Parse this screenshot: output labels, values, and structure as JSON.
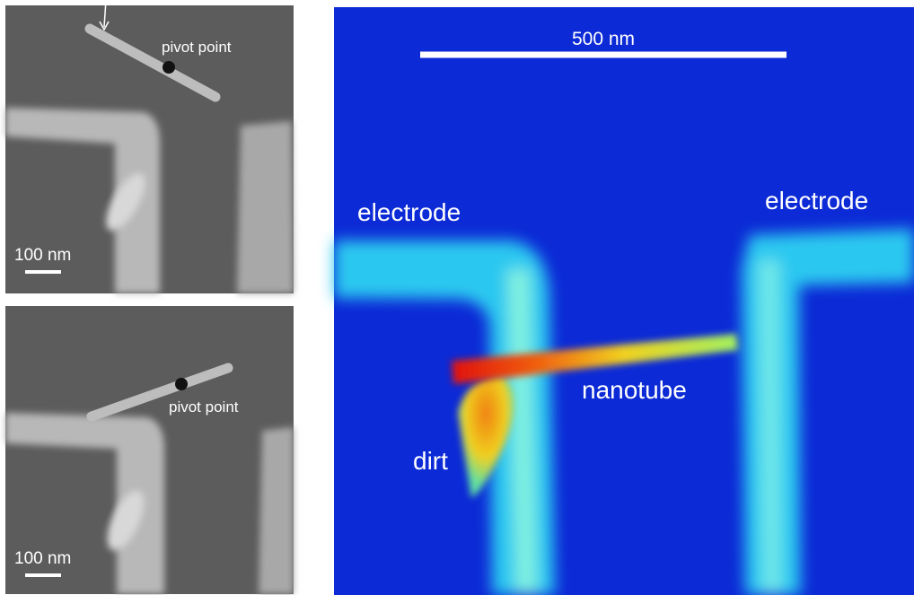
{
  "top_panel": {
    "pivot_label": "pivot point",
    "scale_label": "100 nm"
  },
  "bottom_panel": {
    "pivot_label": "pivot point",
    "scale_label": "100 nm"
  },
  "main_panel": {
    "scale_label": "500 nm",
    "electrode_left": "electrode",
    "electrode_right": "electrode",
    "nanotube": "nanotube",
    "dirt": "dirt"
  }
}
